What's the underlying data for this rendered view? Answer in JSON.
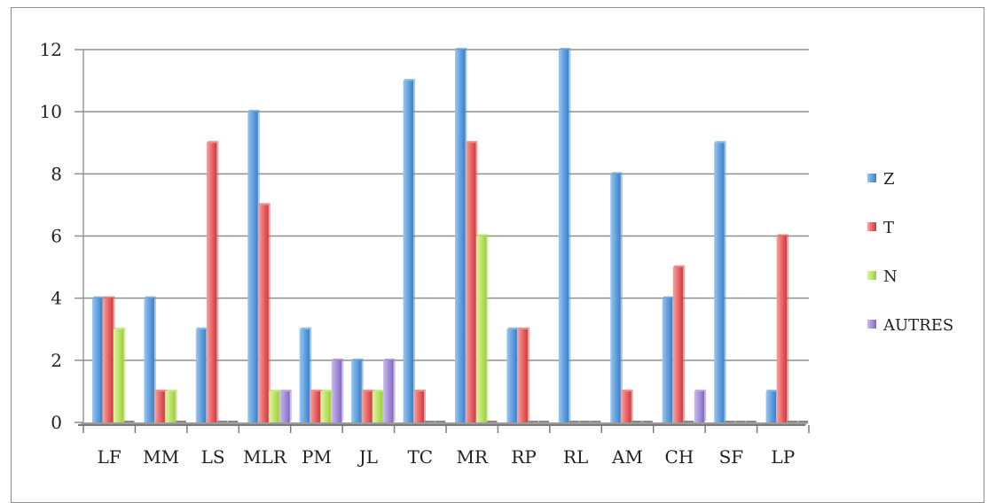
{
  "chart_data": {
    "type": "bar",
    "title": "",
    "xlabel": "",
    "ylabel": "",
    "ylim": [
      0,
      12
    ],
    "yticks": [
      0,
      2,
      4,
      6,
      8,
      10,
      12
    ],
    "grid": true,
    "legend_position": "right",
    "categories": [
      "LF",
      "MM",
      "LS",
      "MLR",
      "PM",
      "JL",
      "TC",
      "MR",
      "RP",
      "RL",
      "AM",
      "CH",
      "SF",
      "LP"
    ],
    "series": [
      {
        "name": "Z",
        "color": "#5b9bd5",
        "values": [
          4,
          4,
          3,
          10,
          3,
          2,
          11,
          12,
          3,
          12,
          8,
          4,
          9,
          1
        ]
      },
      {
        "name": "T",
        "color": "#e5585a",
        "values": [
          4,
          1,
          9,
          7,
          1,
          1,
          1,
          9,
          3,
          0,
          1,
          5,
          0,
          6
        ]
      },
      {
        "name": "N",
        "color": "#b4e05a",
        "values": [
          3,
          1,
          0,
          1,
          1,
          1,
          0,
          6,
          0,
          0,
          0,
          0,
          0,
          0
        ]
      },
      {
        "name": "AUTRES",
        "color": "#9d86cf",
        "values": [
          0,
          0,
          0,
          1,
          2,
          2,
          0,
          0,
          0,
          0,
          0,
          1,
          0,
          0
        ]
      }
    ]
  }
}
